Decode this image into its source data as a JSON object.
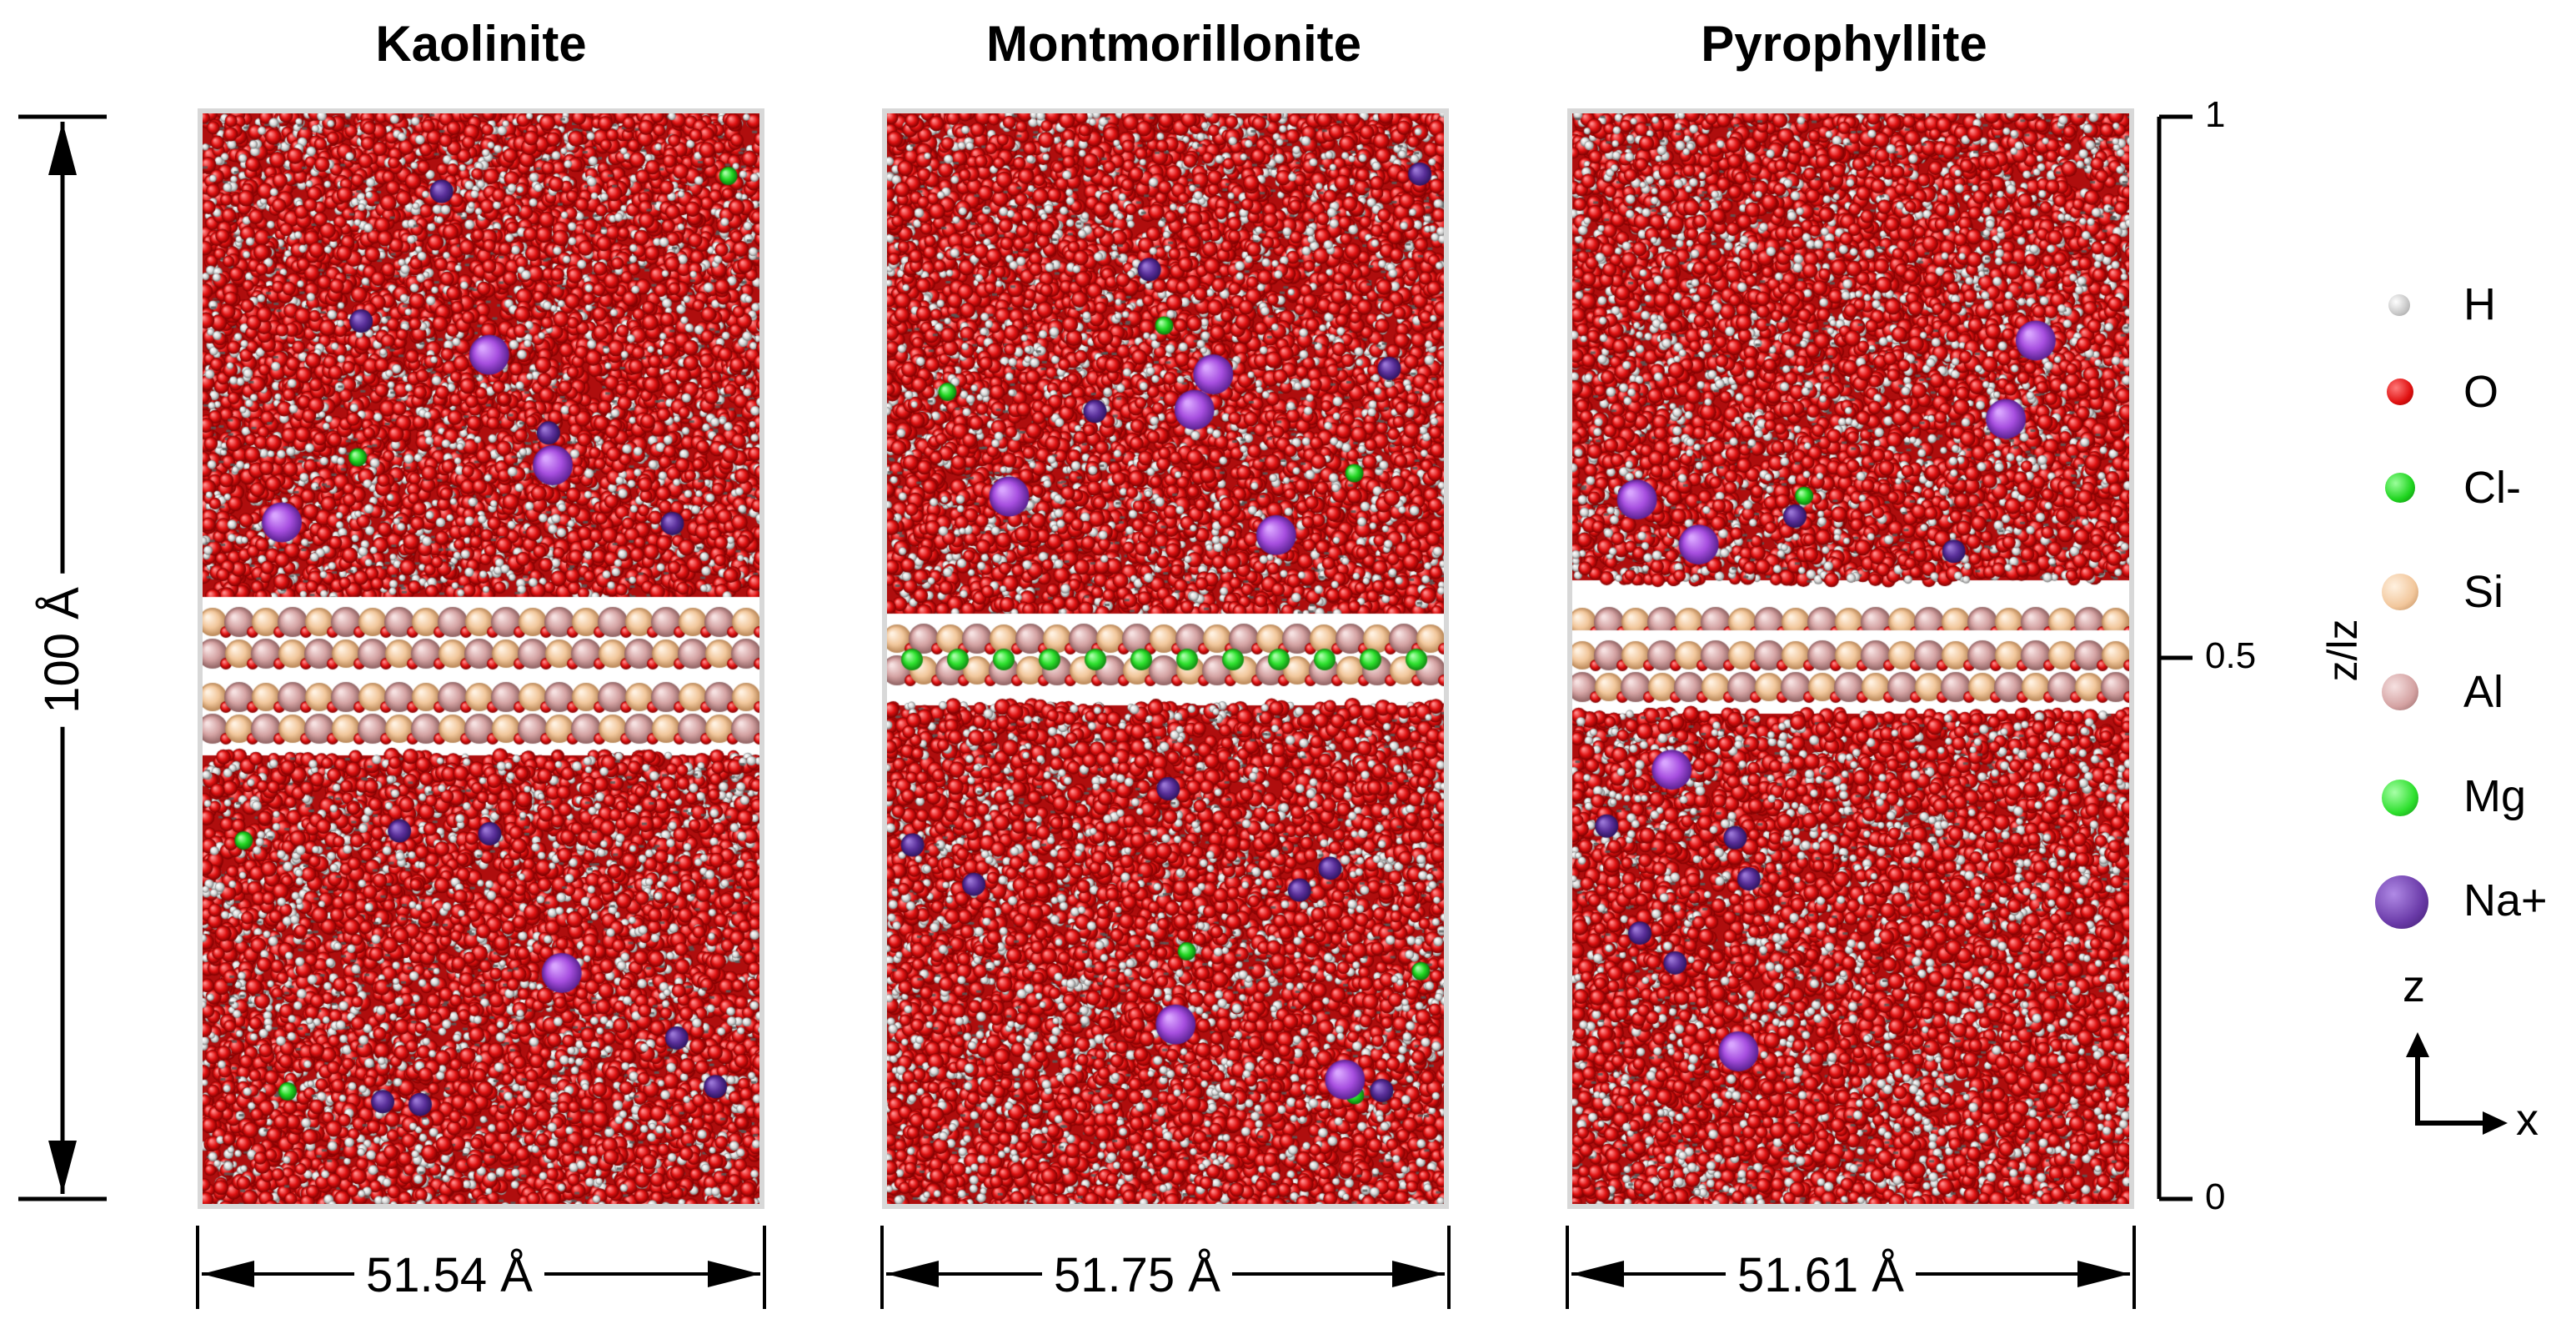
{
  "panels": [
    {
      "title": "Kaolinite",
      "width_label": "51.54 Å",
      "layer": "kaolinite"
    },
    {
      "title": "Montmorillonite",
      "width_label": "51.75 Å",
      "layer": "montmorillonite"
    },
    {
      "title": "Pyrophyllite",
      "width_label": "51.61 Å",
      "layer": "pyrophyllite"
    }
  ],
  "height_label": "100 Å",
  "z_axis": {
    "title": "z/lz",
    "ticks": [
      "1",
      "0.5",
      "0"
    ]
  },
  "legend": [
    {
      "label": "H",
      "color": "#f2f2f2"
    },
    {
      "label": "O",
      "color": "#e11414"
    },
    {
      "label": "Cl-",
      "color": "#22d622"
    },
    {
      "label": "Si",
      "color": "#f4c9a0"
    },
    {
      "label": "Al",
      "color": "#d9a6a6"
    },
    {
      "label": "Mg",
      "color": "#2ee02e"
    },
    {
      "label": "Na+",
      "color": "#6a3aa8"
    }
  ],
  "axes_icon": {
    "z": "z",
    "x": "x"
  },
  "colors": {
    "water_red": "#e11414",
    "hydrogen": "#f2f2f2",
    "chlorine": "#22d622",
    "silicon": "#f4c9a0",
    "aluminum": "#d9a6a6",
    "sodium": "#a84fe0",
    "sodium_dark": "#5a2f99"
  }
}
